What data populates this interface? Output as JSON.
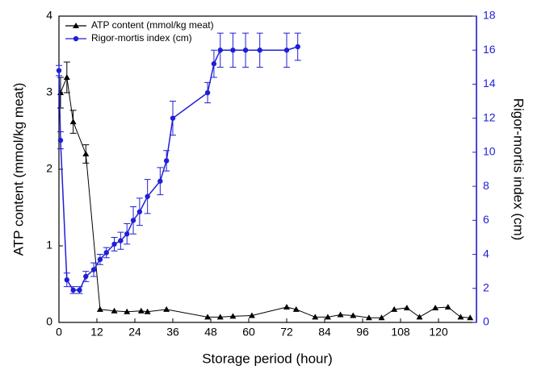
{
  "chart_data": {
    "type": "line",
    "xlabel": "Storage period (hour)",
    "ylabel": "ATP content (mmol/kg meat)",
    "y2label": "Rigor-mortis index (cm)",
    "xlim": [
      0,
      132
    ],
    "xticks": [
      0,
      12,
      24,
      36,
      48,
      60,
      72,
      84,
      96,
      108,
      120
    ],
    "ylim": [
      0,
      4
    ],
    "yticks": [
      0,
      1,
      2,
      3,
      4
    ],
    "y2lim": [
      0,
      18
    ],
    "y2ticks": [
      0,
      2,
      4,
      6,
      8,
      10,
      12,
      14,
      16,
      18
    ],
    "legend": "upper left",
    "series": [
      {
        "name": "ATP content (mmol/kg meat)",
        "color": "#000000",
        "marker": "triangle",
        "x": [
          0.5,
          2.5,
          4.5,
          8.5,
          13,
          17.5,
          21.5,
          26,
          28,
          34,
          47,
          51,
          55,
          61,
          72,
          75,
          81,
          85,
          89,
          93,
          98,
          102,
          106,
          110,
          114,
          119,
          123,
          127,
          130
        ],
        "values": [
          3.0,
          3.2,
          2.62,
          2.2,
          0.17,
          0.15,
          0.14,
          0.15,
          0.14,
          0.17,
          0.07,
          0.07,
          0.08,
          0.09,
          0.2,
          0.17,
          0.07,
          0.07,
          0.1,
          0.09,
          0.06,
          0.06,
          0.17,
          0.19,
          0.07,
          0.19,
          0.2,
          0.07,
          0.06
        ],
        "errors": [
          0.2,
          0.2,
          0.15,
          0.12,
          null,
          null,
          null,
          null,
          null,
          null,
          null,
          null,
          null,
          null,
          null,
          null,
          null,
          null,
          null,
          null,
          null,
          null,
          null,
          null,
          null,
          null,
          null,
          null,
          null
        ]
      },
      {
        "name": "Rigor-mortis index (cm)",
        "color": "#1f1fd6",
        "marker": "circle",
        "axis": "y2",
        "x": [
          0,
          0.5,
          2.5,
          4.5,
          6.5,
          8.5,
          11,
          13,
          15,
          17.5,
          19.5,
          21.5,
          23.5,
          25.5,
          28,
          32,
          34,
          36,
          47,
          49,
          51,
          55,
          59,
          63.5,
          72,
          75.5
        ],
        "values": [
          14.8,
          10.7,
          2.5,
          1.9,
          1.9,
          2.7,
          3.1,
          3.7,
          4.1,
          4.6,
          4.8,
          5.2,
          6.0,
          6.5,
          7.4,
          8.3,
          9.5,
          12.0,
          13.5,
          15.2,
          16.0,
          16.0,
          16.0,
          16.0,
          16.0,
          16.2
        ],
        "errors": [
          0.3,
          0.5,
          0.4,
          0.2,
          0.2,
          0.3,
          0.4,
          0.3,
          0.3,
          0.4,
          0.5,
          0.6,
          0.8,
          0.8,
          1.0,
          0.8,
          0.6,
          1.0,
          0.6,
          0.8,
          1.0,
          1.0,
          1.0,
          1.0,
          1.0,
          0.8
        ]
      }
    ]
  }
}
